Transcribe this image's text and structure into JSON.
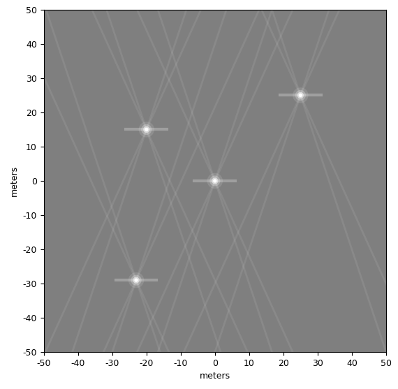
{
  "chart_data": {
    "type": "scatter",
    "x_label": "meters",
    "y_label": "meters",
    "x": [
      0,
      -20,
      25,
      -23
    ],
    "values": [
      0,
      15,
      25,
      -29
    ],
    "color": "#ffffff",
    "xlim": [
      -50,
      50
    ],
    "ylim": [
      -50,
      50
    ],
    "xticks": [
      -50,
      -40,
      -30,
      -20,
      -10,
      0,
      10,
      20,
      30,
      40,
      50
    ],
    "yticks": [
      -50,
      -40,
      -30,
      -20,
      -10,
      0,
      10,
      20,
      30,
      40,
      50
    ],
    "grid": false
  }
}
